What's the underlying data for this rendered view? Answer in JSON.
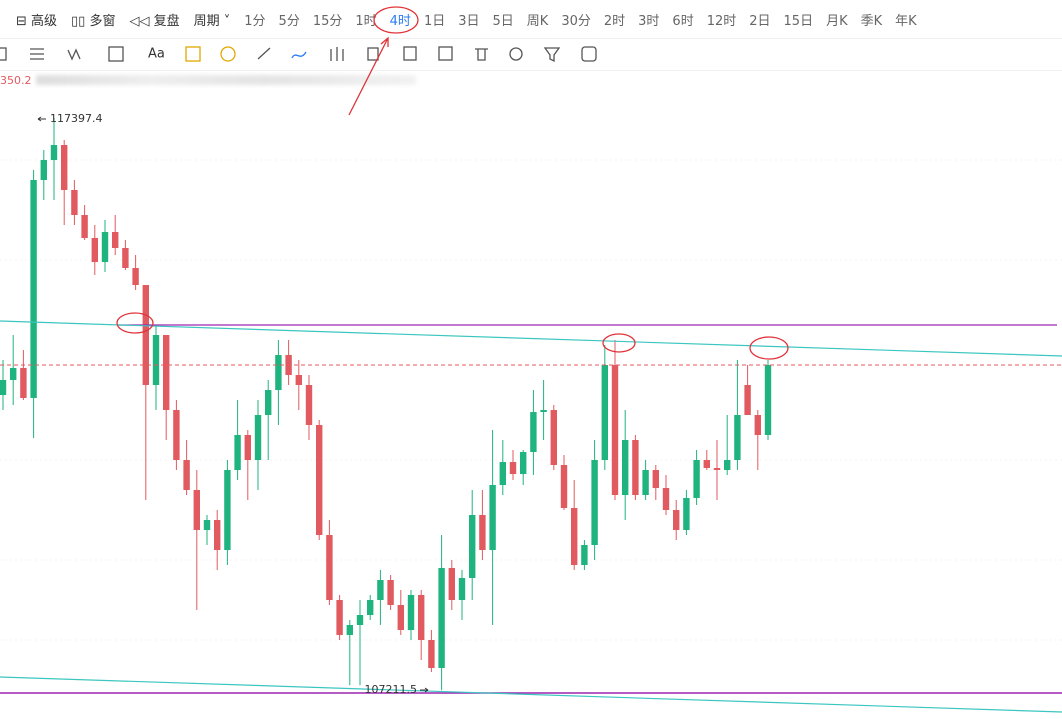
{
  "toolbar": {
    "menus": [
      "高级",
      "多窗",
      "复盘",
      "周期"
    ],
    "periods": [
      "1分",
      "5分",
      "15分",
      "1时",
      "4时",
      "1日",
      "3日",
      "5日",
      "周K",
      "30分",
      "2时",
      "3时",
      "6时",
      "12时",
      "2日",
      "15日",
      "月K",
      "季K",
      "年K"
    ],
    "active": 4,
    "tools_text": "Aa"
  },
  "status": {
    "text": "350.2"
  },
  "chart_data": {
    "type": "candlestick",
    "colors": {
      "up": "#1fb37f",
      "down": "#e05a5f"
    },
    "ylim": [
      106699,
      118251
    ],
    "candles": [
      [
        112466,
        113089,
        112199,
        112733
      ],
      [
        112733,
        113534,
        112288,
        112947
      ],
      [
        112947,
        113267,
        112377,
        112413
      ],
      [
        112413,
        116471,
        111701,
        116293
      ],
      [
        116293,
        116827,
        115937,
        116649
      ],
      [
        116649,
        117397.4,
        115937,
        116916
      ],
      [
        116916,
        117005,
        115492,
        116115
      ],
      [
        116115,
        116293,
        115492,
        115670
      ],
      [
        115670,
        115848,
        115225,
        115261
      ],
      [
        115261,
        115492,
        114602,
        114833
      ],
      [
        114833,
        115581,
        114655,
        115367
      ],
      [
        115367,
        115670,
        114958,
        115083
      ],
      [
        115083,
        115225,
        114691,
        114727
      ],
      [
        114727,
        114958,
        114335,
        114424
      ],
      [
        114424,
        114424,
        110597,
        112644
      ],
      [
        112644,
        113712,
        112199,
        113534
      ],
      [
        113534,
        113534,
        111665,
        112199
      ],
      [
        112199,
        112377,
        111131,
        111309
      ],
      [
        111309,
        111665,
        110686,
        110775
      ],
      [
        110775,
        111131,
        108639,
        110063
      ],
      [
        110063,
        110330,
        109796,
        110241
      ],
      [
        110241,
        110419,
        109351,
        109707
      ],
      [
        109707,
        111309,
        109440,
        111131
      ],
      [
        111131,
        112377,
        110953,
        111754
      ],
      [
        111754,
        111843,
        110597,
        111309
      ],
      [
        111309,
        112377,
        110775,
        112110
      ],
      [
        112110,
        112733,
        111309,
        112555
      ],
      [
        112555,
        113445,
        111932,
        113178
      ],
      [
        113178,
        113445,
        112644,
        112822
      ],
      [
        112822,
        113089,
        112199,
        112644
      ],
      [
        112644,
        112822,
        111665,
        111932
      ],
      [
        111932,
        112021,
        109885,
        109974
      ],
      [
        109974,
        110241,
        108728,
        108817
      ],
      [
        108817,
        108906,
        108105,
        108194
      ],
      [
        108194,
        108461,
        107300,
        108372
      ],
      [
        108372,
        108817,
        107300,
        108550
      ],
      [
        108550,
        108906,
        108461,
        108817
      ],
      [
        108817,
        109351,
        108372,
        109173
      ],
      [
        109173,
        109262,
        108639,
        108728
      ],
      [
        108728,
        108995,
        108194,
        108283
      ],
      [
        108283,
        108995,
        108105,
        108906
      ],
      [
        108906,
        108995,
        107749,
        108105
      ],
      [
        108105,
        108283,
        107535,
        107607
      ],
      [
        107607,
        109974,
        107211.5,
        109387
      ],
      [
        109387,
        109529,
        108639,
        108817
      ],
      [
        108817,
        109351,
        108461,
        109209
      ],
      [
        109209,
        110775,
        108817,
        110330
      ],
      [
        110330,
        110775,
        109529,
        109707
      ],
      [
        109707,
        111843,
        108372,
        110864
      ],
      [
        110864,
        111665,
        110686,
        111273
      ],
      [
        111273,
        111487,
        110953,
        111060
      ],
      [
        111060,
        111487,
        110864,
        111451
      ],
      [
        111451,
        112555,
        111042,
        112163
      ],
      [
        112163,
        112733,
        111665,
        112199
      ],
      [
        112199,
        112288,
        111131,
        111220
      ],
      [
        111220,
        111398,
        110419,
        110455
      ],
      [
        110455,
        110953,
        109351,
        109440
      ],
      [
        109440,
        109885,
        109351,
        109796
      ],
      [
        109796,
        111665,
        109529,
        111309
      ],
      [
        111309,
        113356,
        111131,
        113000
      ],
      [
        113000,
        113445,
        110597,
        110686
      ],
      [
        110686,
        112199,
        110241,
        111665
      ],
      [
        111665,
        111754,
        110597,
        110686
      ],
      [
        110686,
        111309,
        110597,
        111131
      ],
      [
        111131,
        111220,
        110597,
        110811
      ],
      [
        110811,
        111042,
        110330,
        110419
      ],
      [
        110419,
        110597,
        109885,
        110063
      ],
      [
        110063,
        110775,
        109974,
        110633
      ],
      [
        110633,
        111487,
        110508,
        111309
      ],
      [
        111309,
        111487,
        111131,
        111167
      ],
      [
        111167,
        111665,
        110597,
        111131
      ],
      [
        111131,
        112110,
        111042,
        111309
      ],
      [
        111309,
        113089,
        111131,
        112110
      ],
      [
        112644,
        113000,
        112110,
        112110
      ],
      [
        112110,
        112199,
        111131,
        111754
      ],
      [
        111754,
        113089,
        111665,
        113000
      ]
    ]
  }
}
